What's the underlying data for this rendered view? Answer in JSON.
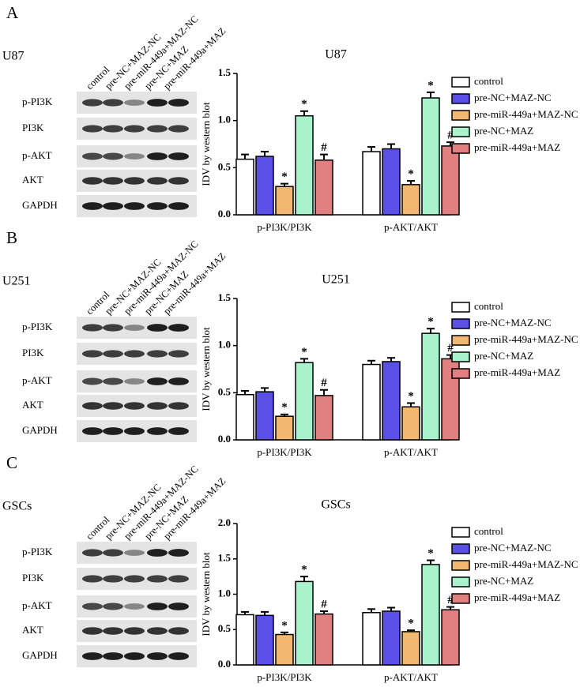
{
  "blots": [
    {
      "panel_label": "A",
      "cell_line": "U87",
      "lanes": [
        "control",
        "pre-NC+MAZ-NC",
        "pre-miR-449a+MAZ-NC",
        "pre-NC+MAZ",
        "pre-miR-449a+MAZ"
      ],
      "rows": [
        "p-PI3K",
        "PI3K",
        "p-AKT",
        "AKT",
        "GAPDH"
      ]
    },
    {
      "panel_label": "B",
      "cell_line": "U251",
      "lanes": [
        "control",
        "pre-NC+MAZ-NC",
        "pre-miR-449a+MAZ-NC",
        "pre-NC+MAZ",
        "pre-miR-449a+MAZ"
      ],
      "rows": [
        "p-PI3K",
        "PI3K",
        "p-AKT",
        "AKT",
        "GAPDH"
      ]
    },
    {
      "panel_label": "C",
      "cell_line": "GSCs",
      "lanes": [
        "control",
        "pre-NC+MAZ-NC",
        "pre-miR-449a+MAZ-NC",
        "pre-NC+MAZ",
        "pre-miR-449a+MAZ"
      ],
      "rows": [
        "p-PI3K",
        "PI3K",
        "p-AKT",
        "AKT",
        "GAPDH"
      ]
    }
  ],
  "chart_data": [
    {
      "type": "bar",
      "title": "U87",
      "y_label": "IDV  by western blot",
      "categories": [
        "p-PI3K/PI3K",
        "p-AKT/AKT"
      ],
      "ylim": [
        0,
        1.5
      ],
      "yticks": [
        {
          "value": 0,
          "label": "0.0"
        },
        0.5,
        {
          "value": 1,
          "label": "1.0"
        },
        1.5
      ],
      "series": [
        {
          "name": "control",
          "color": "#ffffff",
          "values": [
            0.59,
            0.67
          ],
          "errors": [
            0.05,
            0.05
          ],
          "markers": [
            null,
            null
          ]
        },
        {
          "name": "pre-NC+MAZ-NC",
          "color": "#5b50e6",
          "values": [
            0.62,
            0.7
          ],
          "errors": [
            0.05,
            0.05
          ],
          "markers": [
            null,
            null
          ]
        },
        {
          "name": "pre-miR-449a+MAZ-NC",
          "color": "#f2b872",
          "values": [
            0.3,
            0.32
          ],
          "errors": [
            0.03,
            0.04
          ],
          "markers": [
            "*",
            "*"
          ]
        },
        {
          "name": "pre-NC+MAZ",
          "color": "#a8f2cc",
          "values": [
            1.05,
            1.24
          ],
          "errors": [
            0.05,
            0.06
          ],
          "markers": [
            "*",
            "*"
          ]
        },
        {
          "name": "pre-miR-449a+MAZ",
          "color": "#e08080",
          "values": [
            0.58,
            0.73
          ],
          "errors": [
            0.06,
            0.04
          ],
          "markers": [
            "#",
            "#"
          ]
        }
      ]
    },
    {
      "type": "bar",
      "title": "U251",
      "y_label": "IDV  by western blot",
      "categories": [
        "p-PI3K/PI3K",
        "p-AKT/AKT"
      ],
      "ylim": [
        0,
        1.5
      ],
      "yticks": [
        {
          "value": 0,
          "label": "0.0"
        },
        0.5,
        {
          "value": 1,
          "label": "1.0"
        },
        1.5
      ],
      "series": [
        {
          "name": "control",
          "color": "#ffffff",
          "values": [
            0.48,
            0.8
          ],
          "errors": [
            0.04,
            0.04
          ],
          "markers": [
            null,
            null
          ]
        },
        {
          "name": "pre-NC+MAZ-NC",
          "color": "#5b50e6",
          "values": [
            0.51,
            0.83
          ],
          "errors": [
            0.04,
            0.04
          ],
          "markers": [
            null,
            null
          ]
        },
        {
          "name": "pre-miR-449a+MAZ-NC",
          "color": "#f2b872",
          "values": [
            0.25,
            0.35
          ],
          "errors": [
            0.02,
            0.04
          ],
          "markers": [
            "*",
            "*"
          ]
        },
        {
          "name": "pre-NC+MAZ",
          "color": "#a8f2cc",
          "values": [
            0.82,
            1.13
          ],
          "errors": [
            0.04,
            0.05
          ],
          "markers": [
            "*",
            "*"
          ]
        },
        {
          "name": "pre-miR-449a+MAZ",
          "color": "#e08080",
          "values": [
            0.47,
            0.86
          ],
          "errors": [
            0.06,
            0.04
          ],
          "markers": [
            "#",
            "#"
          ]
        }
      ]
    },
    {
      "type": "bar",
      "title": "GSCs",
      "y_label": "IDV  by western blot",
      "categories": [
        "p-PI3K/PI3K",
        "p-AKT/AKT"
      ],
      "ylim": [
        0,
        2
      ],
      "yticks": [
        {
          "value": 0,
          "label": "0.0"
        },
        0.5,
        {
          "value": 1,
          "label": "1.0"
        },
        1.5,
        {
          "value": 2,
          "label": "2.0"
        }
      ],
      "series": [
        {
          "name": "control",
          "color": "#ffffff",
          "values": [
            0.71,
            0.74
          ],
          "errors": [
            0.04,
            0.05
          ],
          "markers": [
            null,
            null
          ]
        },
        {
          "name": "pre-NC+MAZ-NC",
          "color": "#5b50e6",
          "values": [
            0.7,
            0.76
          ],
          "errors": [
            0.05,
            0.05
          ],
          "markers": [
            null,
            null
          ]
        },
        {
          "name": "pre-miR-449a+MAZ-NC",
          "color": "#f2b872",
          "values": [
            0.43,
            0.47
          ],
          "errors": [
            0.03,
            0.02
          ],
          "markers": [
            "*",
            "*"
          ]
        },
        {
          "name": "pre-NC+MAZ",
          "color": "#a8f2cc",
          "values": [
            1.18,
            1.42
          ],
          "errors": [
            0.07,
            0.06
          ],
          "markers": [
            "*",
            "*"
          ]
        },
        {
          "name": "pre-miR-449a+MAZ",
          "color": "#e08080",
          "values": [
            0.72,
            0.78
          ],
          "errors": [
            0.04,
            0.04
          ],
          "markers": [
            "#",
            "#"
          ]
        }
      ]
    }
  ]
}
